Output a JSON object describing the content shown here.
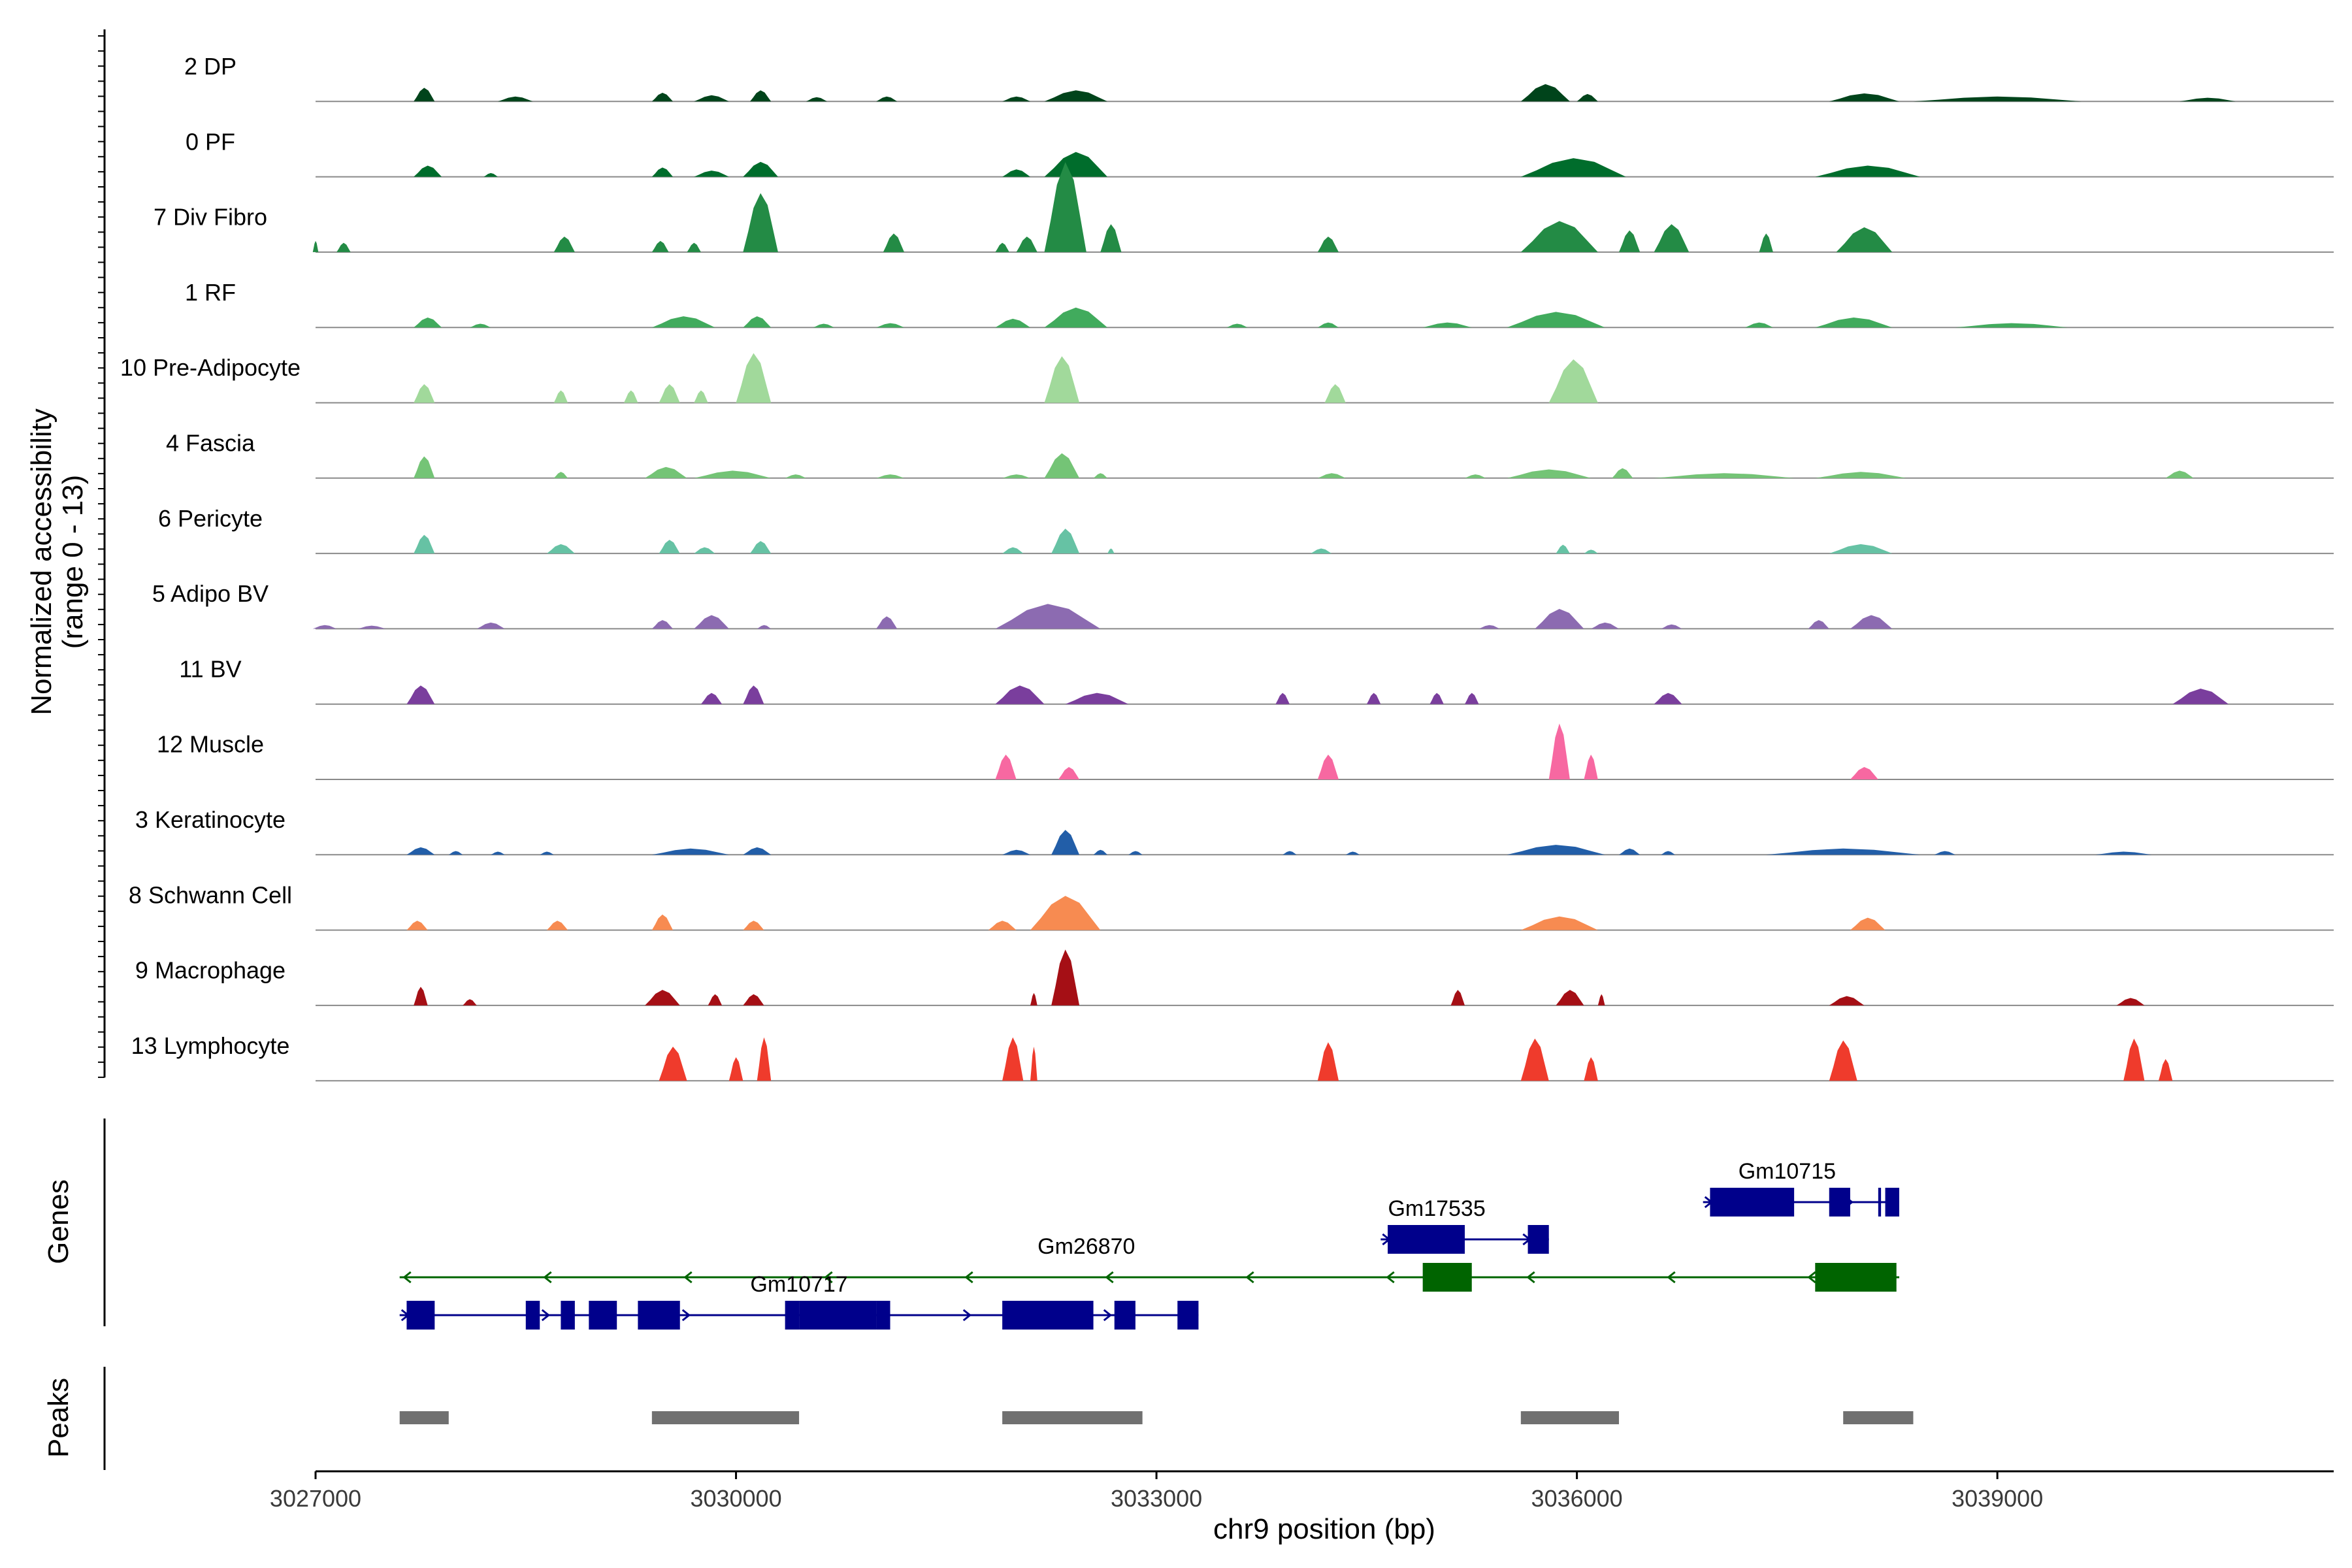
{
  "chart_data": {
    "type": "area",
    "title": "",
    "ylabel_lines": [
      "Normalized accessibility",
      "(range 0 - 13)"
    ],
    "xlabel": "chr9 position (bp)",
    "xlim": [
      3027000,
      3041400
    ],
    "xticks": [
      3027000,
      3030000,
      3033000,
      3036000,
      3039000
    ],
    "xtick_labels": [
      "3027000",
      "3030000",
      "3033000",
      "3036000",
      "3039000"
    ],
    "ylim": [
      0,
      13
    ],
    "gene_panel_label": "Genes",
    "peak_panel_label": "Peaks",
    "series": [
      {
        "name": "2 DP",
        "color": "#00441b",
        "peaks": [
          [
            3027700,
            3027850,
            0.22
          ],
          [
            3028300,
            3028550,
            0.08
          ],
          [
            3029400,
            3029550,
            0.14
          ],
          [
            3029700,
            3029950,
            0.1
          ],
          [
            3030100,
            3030250,
            0.18
          ],
          [
            3030500,
            3030650,
            0.07
          ],
          [
            3031000,
            3031150,
            0.08
          ],
          [
            3031900,
            3032100,
            0.08
          ],
          [
            3032200,
            3032650,
            0.18
          ],
          [
            3035600,
            3035950,
            0.28
          ],
          [
            3036000,
            3036150,
            0.12
          ],
          [
            3037800,
            3038300,
            0.13
          ],
          [
            3038400,
            3039600,
            0.08
          ],
          [
            3040300,
            3040700,
            0.06
          ]
        ]
      },
      {
        "name": "0 PF",
        "color": "#006d2c",
        "peaks": [
          [
            3027700,
            3027900,
            0.18
          ],
          [
            3028200,
            3028300,
            0.06
          ],
          [
            3029400,
            3029550,
            0.15
          ],
          [
            3029700,
            3029950,
            0.1
          ],
          [
            3030050,
            3030300,
            0.24
          ],
          [
            3031900,
            3032100,
            0.12
          ],
          [
            3032200,
            3032650,
            0.4
          ],
          [
            3035600,
            3036350,
            0.3
          ],
          [
            3037700,
            3038450,
            0.18
          ]
        ]
      },
      {
        "name": "7 Div Fibro",
        "color": "#238b45",
        "peaks": [
          [
            3026980,
            3027020,
            0.18
          ],
          [
            3027150,
            3027250,
            0.15
          ],
          [
            3028700,
            3028850,
            0.25
          ],
          [
            3029400,
            3029520,
            0.18
          ],
          [
            3029650,
            3029750,
            0.15
          ],
          [
            3030050,
            3030300,
            0.95
          ],
          [
            3031050,
            3031200,
            0.3
          ],
          [
            3031850,
            3031950,
            0.15
          ],
          [
            3032000,
            3032150,
            0.25
          ],
          [
            3032200,
            3032500,
            1.45
          ],
          [
            3032600,
            3032750,
            0.45
          ],
          [
            3034150,
            3034300,
            0.25
          ],
          [
            3035600,
            3036150,
            0.5
          ],
          [
            3036300,
            3036450,
            0.35
          ],
          [
            3036550,
            3036800,
            0.45
          ],
          [
            3037300,
            3037400,
            0.3
          ],
          [
            3037850,
            3038250,
            0.4
          ]
        ]
      },
      {
        "name": "1 RF",
        "color": "#41ab5d",
        "peaks": [
          [
            3027700,
            3027900,
            0.16
          ],
          [
            3028100,
            3028250,
            0.06
          ],
          [
            3029400,
            3029850,
            0.18
          ],
          [
            3030050,
            3030250,
            0.18
          ],
          [
            3030550,
            3030700,
            0.06
          ],
          [
            3031000,
            3031200,
            0.07
          ],
          [
            3031850,
            3032100,
            0.14
          ],
          [
            3032200,
            3032650,
            0.32
          ],
          [
            3033500,
            3033650,
            0.06
          ],
          [
            3034150,
            3034300,
            0.08
          ],
          [
            3034900,
            3035250,
            0.08
          ],
          [
            3035500,
            3036200,
            0.25
          ],
          [
            3037200,
            3037400,
            0.08
          ],
          [
            3037700,
            3038250,
            0.16
          ],
          [
            3038700,
            3039500,
            0.07
          ]
        ]
      },
      {
        "name": "10 Pre-Adipocyte",
        "color": "#a1d99b",
        "peaks": [
          [
            3027700,
            3027850,
            0.3
          ],
          [
            3028700,
            3028800,
            0.2
          ],
          [
            3029200,
            3029300,
            0.2
          ],
          [
            3029450,
            3029600,
            0.3
          ],
          [
            3029700,
            3029800,
            0.2
          ],
          [
            3030000,
            3030250,
            0.8
          ],
          [
            3032200,
            3032450,
            0.75
          ],
          [
            3034200,
            3034350,
            0.3
          ],
          [
            3035800,
            3036150,
            0.7
          ]
        ]
      },
      {
        "name": "4 Fascia",
        "color": "#74c476",
        "peaks": [
          [
            3027700,
            3027850,
            0.35
          ],
          [
            3028700,
            3028800,
            0.1
          ],
          [
            3029350,
            3029650,
            0.18
          ],
          [
            3029700,
            3030250,
            0.12
          ],
          [
            3030350,
            3030500,
            0.06
          ],
          [
            3031000,
            3031200,
            0.06
          ],
          [
            3031900,
            3032100,
            0.06
          ],
          [
            3032200,
            3032450,
            0.4
          ],
          [
            3032550,
            3032650,
            0.08
          ],
          [
            3034150,
            3034350,
            0.08
          ],
          [
            3035200,
            3035350,
            0.06
          ],
          [
            3035500,
            3036100,
            0.14
          ],
          [
            3036250,
            3036400,
            0.16
          ],
          [
            3036550,
            3037550,
            0.08
          ],
          [
            3037700,
            3038350,
            0.1
          ],
          [
            3040200,
            3040400,
            0.12
          ]
        ]
      },
      {
        "name": "6 Pericyte",
        "color": "#66c2a4",
        "peaks": [
          [
            3027700,
            3027850,
            0.3
          ],
          [
            3028650,
            3028850,
            0.15
          ],
          [
            3029450,
            3029600,
            0.22
          ],
          [
            3029700,
            3029850,
            0.1
          ],
          [
            3030100,
            3030250,
            0.2
          ],
          [
            3031900,
            3032050,
            0.1
          ],
          [
            3032250,
            3032450,
            0.4
          ],
          [
            3032650,
            3032700,
            0.08
          ],
          [
            3034100,
            3034250,
            0.08
          ],
          [
            3035850,
            3035950,
            0.14
          ],
          [
            3036050,
            3036150,
            0.06
          ],
          [
            3037800,
            3038250,
            0.15
          ]
        ]
      },
      {
        "name": "5 Adipo BV",
        "color": "#8c6bb1",
        "peaks": [
          [
            3026980,
            3027150,
            0.06
          ],
          [
            3027300,
            3027500,
            0.05
          ],
          [
            3028150,
            3028350,
            0.1
          ],
          [
            3029400,
            3029550,
            0.14
          ],
          [
            3029700,
            3029950,
            0.22
          ],
          [
            3030150,
            3030250,
            0.06
          ],
          [
            3031000,
            3031150,
            0.2
          ],
          [
            3031850,
            3032600,
            0.4
          ],
          [
            3035300,
            3035450,
            0.06
          ],
          [
            3035700,
            3036050,
            0.32
          ],
          [
            3036100,
            3036300,
            0.1
          ],
          [
            3036600,
            3036750,
            0.07
          ],
          [
            3037650,
            3037800,
            0.14
          ],
          [
            3037950,
            3038250,
            0.22
          ]
        ]
      },
      {
        "name": "11 BV",
        "color": "#7a3e9d",
        "peaks": [
          [
            3027650,
            3027850,
            0.3
          ],
          [
            3029750,
            3029900,
            0.18
          ],
          [
            3030050,
            3030200,
            0.3
          ],
          [
            3031850,
            3032200,
            0.3
          ],
          [
            3032350,
            3032800,
            0.18
          ],
          [
            3033850,
            3033950,
            0.18
          ],
          [
            3034500,
            3034600,
            0.18
          ],
          [
            3034950,
            3035050,
            0.18
          ],
          [
            3035200,
            3035300,
            0.18
          ],
          [
            3036550,
            3036750,
            0.18
          ],
          [
            3040250,
            3040650,
            0.25
          ]
        ]
      },
      {
        "name": "12 Muscle",
        "color": "#f768a1",
        "peaks": [
          [
            3031850,
            3032000,
            0.4
          ],
          [
            3032300,
            3032450,
            0.2
          ],
          [
            3034150,
            3034300,
            0.4
          ],
          [
            3035800,
            3035950,
            0.9
          ],
          [
            3036050,
            3036150,
            0.4
          ],
          [
            3037950,
            3038150,
            0.2
          ]
        ]
      },
      {
        "name": "3 Keratinocyte",
        "color": "#225ea8",
        "peaks": [
          [
            3027650,
            3027850,
            0.12
          ],
          [
            3027950,
            3028050,
            0.06
          ],
          [
            3028250,
            3028350,
            0.05
          ],
          [
            3028600,
            3028700,
            0.05
          ],
          [
            3029400,
            3029950,
            0.1
          ],
          [
            3030050,
            3030250,
            0.12
          ],
          [
            3031900,
            3032100,
            0.08
          ],
          [
            3032250,
            3032450,
            0.4
          ],
          [
            3032550,
            3032650,
            0.08
          ],
          [
            3032800,
            3032900,
            0.06
          ],
          [
            3033900,
            3034000,
            0.06
          ],
          [
            3034350,
            3034450,
            0.05
          ],
          [
            3035500,
            3036200,
            0.16
          ],
          [
            3036300,
            3036450,
            0.1
          ],
          [
            3036600,
            3036700,
            0.06
          ],
          [
            3037350,
            3038450,
            0.1
          ],
          [
            3038550,
            3038700,
            0.06
          ],
          [
            3039700,
            3040100,
            0.05
          ]
        ]
      },
      {
        "name": "8 Schwann Cell",
        "color": "#f78b51",
        "peaks": [
          [
            3027650,
            3027800,
            0.15
          ],
          [
            3028650,
            3028800,
            0.15
          ],
          [
            3029400,
            3029550,
            0.25
          ],
          [
            3030050,
            3030200,
            0.15
          ],
          [
            3031800,
            3032000,
            0.15
          ],
          [
            3032100,
            3032600,
            0.55
          ],
          [
            3035600,
            3036150,
            0.22
          ],
          [
            3037950,
            3038200,
            0.2
          ]
        ]
      },
      {
        "name": "9 Macrophage",
        "color": "#a50f15",
        "peaks": [
          [
            3027700,
            3027800,
            0.3
          ],
          [
            3028050,
            3028150,
            0.1
          ],
          [
            3029350,
            3029600,
            0.25
          ],
          [
            3029800,
            3029900,
            0.18
          ],
          [
            3030050,
            3030200,
            0.18
          ],
          [
            3032100,
            3032150,
            0.2
          ],
          [
            3032250,
            3032450,
            0.9
          ],
          [
            3035100,
            3035200,
            0.25
          ],
          [
            3035850,
            3036050,
            0.25
          ],
          [
            3036150,
            3036200,
            0.18
          ],
          [
            3037800,
            3038050,
            0.15
          ],
          [
            3039850,
            3040050,
            0.12
          ]
        ]
      },
      {
        "name": "13 Lymphocyte",
        "color": "#ef3b2c",
        "peaks": [
          [
            3029450,
            3029650,
            0.55
          ],
          [
            3029950,
            3030050,
            0.38
          ],
          [
            3030150,
            3030250,
            0.7
          ],
          [
            3031900,
            3032050,
            0.7
          ],
          [
            3032100,
            3032150,
            0.55
          ],
          [
            3034150,
            3034300,
            0.62
          ],
          [
            3035600,
            3035800,
            0.68
          ],
          [
            3036050,
            3036150,
            0.38
          ],
          [
            3037800,
            3038000,
            0.65
          ],
          [
            3039900,
            3040050,
            0.68
          ],
          [
            3040150,
            3040250,
            0.35
          ]
        ]
      }
    ],
    "genes": [
      {
        "name": "Gm26870",
        "strand": "-",
        "color": "#006400",
        "row": 1,
        "start": 3027600,
        "end": 3038300,
        "exons": [
          [
            3034900,
            3035250
          ],
          [
            3037700,
            3038280
          ]
        ],
        "label_x": 3032500
      },
      {
        "name": "Gm10717",
        "strand": "+",
        "color": "#00008b",
        "row": 2,
        "start": 3027600,
        "end": 3033300,
        "exons": [
          [
            3027650,
            3027850
          ],
          [
            3028500,
            3028600
          ],
          [
            3028750,
            3028850
          ],
          [
            3028950,
            3029150
          ],
          [
            3029300,
            3029600
          ],
          [
            3030350,
            3030450
          ],
          [
            3030450,
            3031000
          ],
          [
            3031000,
            3031100
          ],
          [
            3031900,
            3032550
          ],
          [
            3032700,
            3032850
          ],
          [
            3033150,
            3033300
          ]
        ],
        "label_x": 3030450
      },
      {
        "name": "Gm17535",
        "strand": "+",
        "color": "#00008b",
        "row": 0,
        "start": 3034600,
        "end": 3035800,
        "exons": [
          [
            3034650,
            3035200
          ],
          [
            3035650,
            3035800
          ]
        ],
        "label_x": 3035000
      },
      {
        "name": "Gm10715",
        "strand": "+",
        "color": "#00008b",
        "row": -1,
        "start": 3036900,
        "end": 3038300,
        "exons": [
          [
            3036950,
            3037550
          ],
          [
            3037800,
            3037950
          ],
          [
            3038150,
            3038170
          ],
          [
            3038200,
            3038300
          ]
        ],
        "label_x": 3037500
      }
    ],
    "peak_regions": [
      [
        3027600,
        3027950
      ],
      [
        3029400,
        3030450
      ],
      [
        3031900,
        3032900
      ],
      [
        3035600,
        3036300
      ],
      [
        3037900,
        3038400
      ]
    ],
    "peak_color": "#707070"
  }
}
